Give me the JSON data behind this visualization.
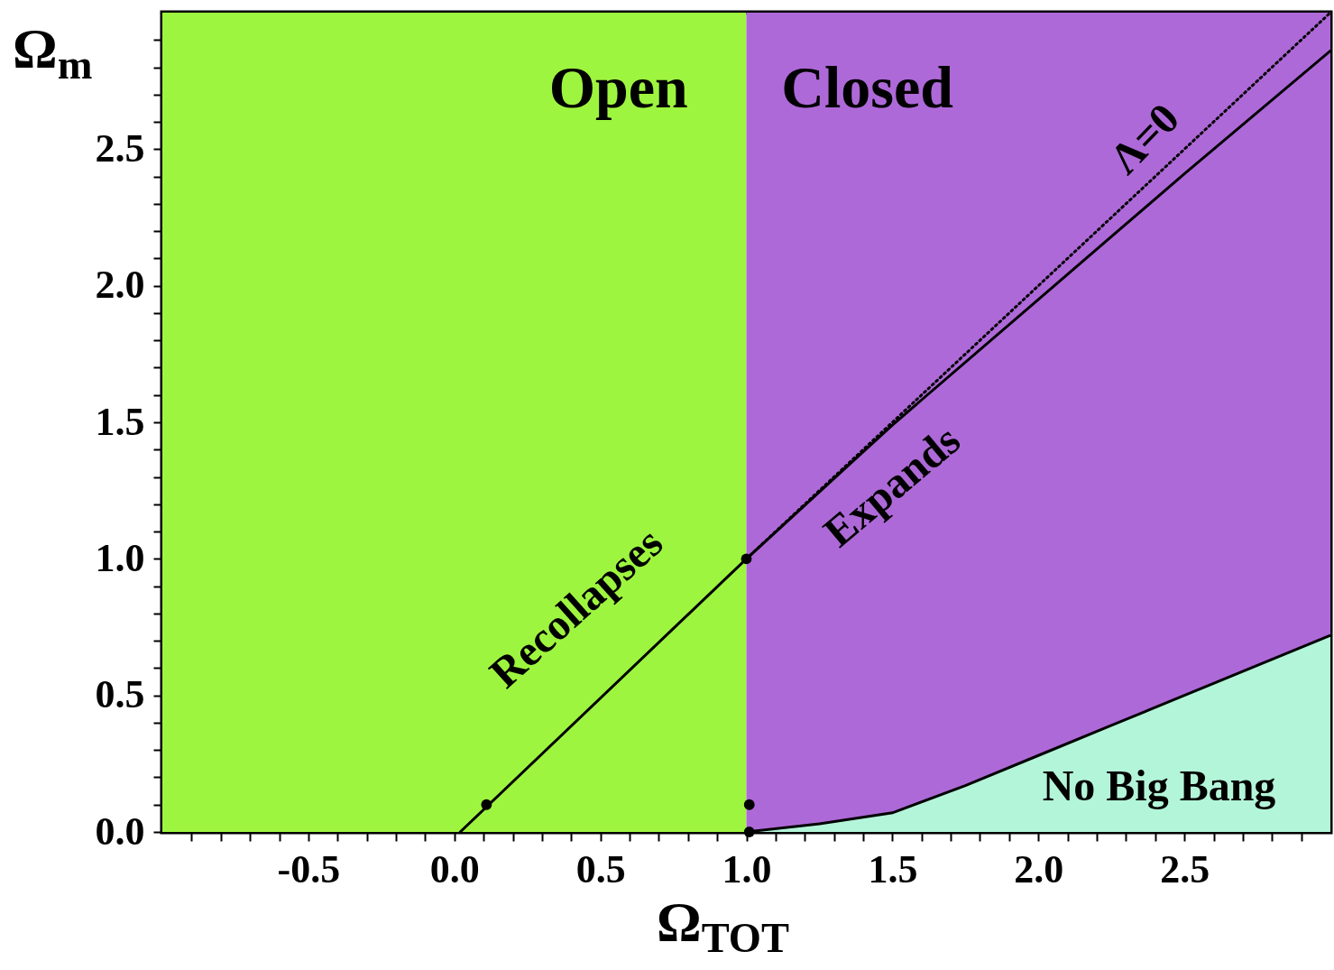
{
  "chart_data": {
    "type": "line",
    "xlabel": "Ω$_{TOT}$",
    "ylabel": "Ω$_{m}$",
    "xlim": [
      -1.0,
      3.0
    ],
    "ylim": [
      0,
      3.0
    ],
    "xticks": [
      {
        "value": -0.9,
        "label": null
      },
      {
        "value": -0.8,
        "label": null
      },
      {
        "value": -0.7,
        "label": null
      },
      {
        "value": -0.6,
        "label": null
      },
      -0.5,
      {
        "value": -0.4,
        "label": null
      },
      {
        "value": -0.3,
        "label": null
      },
      {
        "value": -0.2,
        "label": null
      },
      {
        "value": -0.1,
        "label": null
      },
      {
        "value": 0,
        "label": "0.0"
      },
      {
        "value": 0.1,
        "label": null
      },
      {
        "value": 0.2,
        "label": null
      },
      {
        "value": 0.3,
        "label": null
      },
      {
        "value": 0.4,
        "label": null
      },
      0.5,
      {
        "value": 0.6,
        "label": null
      },
      {
        "value": 0.7,
        "label": null
      },
      {
        "value": 0.8,
        "label": null
      },
      {
        "value": 0.9,
        "label": null
      },
      {
        "value": 1,
        "label": "1.0"
      },
      {
        "value": 1.1,
        "label": null
      },
      {
        "value": 1.2,
        "label": null
      },
      {
        "value": 1.3,
        "label": null
      },
      {
        "value": 1.4,
        "label": null
      },
      1.5,
      {
        "value": 1.6,
        "label": null
      },
      {
        "value": 1.7,
        "label": null
      },
      {
        "value": 1.8,
        "label": null
      },
      {
        "value": 1.9,
        "label": null
      },
      {
        "value": 2,
        "label": "2.0"
      },
      {
        "value": 2.1,
        "label": null
      },
      {
        "value": 2.2,
        "label": null
      },
      {
        "value": 2.3,
        "label": null
      },
      {
        "value": 2.4,
        "label": null
      },
      2.5,
      {
        "value": 2.6,
        "label": null
      },
      {
        "value": 2.7,
        "label": null
      },
      {
        "value": 2.8,
        "label": null
      },
      {
        "value": 2.9,
        "label": null
      }
    ],
    "yticks": [
      {
        "value": 0,
        "label": "0.0"
      },
      {
        "value": 0.1,
        "label": null
      },
      {
        "value": 0.2,
        "label": null
      },
      {
        "value": 0.3,
        "label": null
      },
      {
        "value": 0.4,
        "label": null
      },
      0.5,
      {
        "value": 0.6,
        "label": null
      },
      {
        "value": 0.7,
        "label": null
      },
      {
        "value": 0.8,
        "label": null
      },
      {
        "value": 0.9,
        "label": null
      },
      {
        "value": 1,
        "label": "1.0"
      },
      {
        "value": 1.1,
        "label": null
      },
      {
        "value": 1.2,
        "label": null
      },
      {
        "value": 1.3,
        "label": null
      },
      {
        "value": 1.4,
        "label": null
      },
      1.5,
      {
        "value": 1.6,
        "label": null
      },
      {
        "value": 1.7,
        "label": null
      },
      {
        "value": 1.8,
        "label": null
      },
      {
        "value": 1.9,
        "label": null
      },
      {
        "value": 2,
        "label": "2.0"
      },
      {
        "value": 2.1,
        "label": null
      },
      {
        "value": 2.2,
        "label": null
      },
      {
        "value": 2.3,
        "label": null
      },
      {
        "value": 2.4,
        "label": null
      },
      2.5,
      {
        "value": 2.6,
        "label": null
      },
      {
        "value": 2.7,
        "label": null
      },
      {
        "value": 2.8,
        "label": null
      },
      {
        "value": 2.9,
        "label": null
      }
    ],
    "bands": [
      {
        "axis": "x",
        "from": -1.0,
        "to": 1.0,
        "label": "Open",
        "color": "#9ef53f"
      },
      {
        "axis": "x",
        "from": 1.0,
        "to": 3.0,
        "label": "Closed",
        "color": "#ae69d8"
      }
    ],
    "series": [
      {
        "type": "area",
        "color": "#b3f5d9",
        "x": [
          1.0,
          1.25,
          1.5,
          1.75,
          2.0,
          2.25,
          2.5,
          2.75,
          3.0
        ],
        "values": [
          0,
          0.03,
          0.07,
          0.17,
          0.28,
          0.39,
          0.5,
          0.61,
          0.72
        ]
      },
      {
        "type": "line",
        "color": "#000000",
        "line_style": "dotted",
        "x": [
          1.0,
          3.0
        ],
        "values": [
          1.0,
          3.0
        ]
      },
      {
        "type": "line",
        "color": "#000000",
        "line_style": "solid",
        "x": [
          0.02,
          1.0,
          1.5,
          2.0,
          2.5,
          3.0
        ],
        "values": [
          0,
          1.0,
          1.49,
          1.95,
          2.41,
          2.86
        ]
      },
      {
        "type": "scatter",
        "color": "#000000",
        "marker": "circle",
        "x": [
          0.11,
          1.0,
          1.01,
          1.01
        ],
        "values": [
          0.1,
          1.0,
          0.1,
          0.0
        ]
      }
    ],
    "annotations": [
      "Recollapses",
      "Expands",
      "Λ=0",
      "No Big Bang"
    ],
    "grid": false
  }
}
